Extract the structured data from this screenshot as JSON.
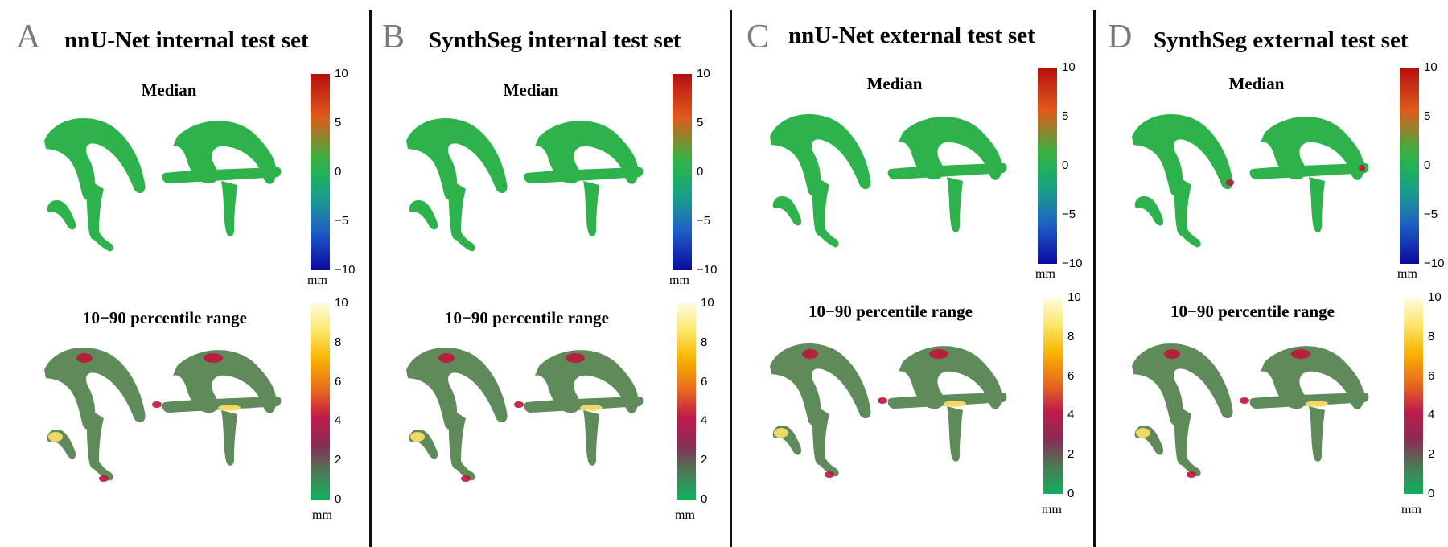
{
  "panels": [
    {
      "letter": "A",
      "title": "nnU-Net internal test set"
    },
    {
      "letter": "B",
      "title": "SynthSeg internal test set"
    },
    {
      "letter": "C",
      "title": "nnU-Net external test set"
    },
    {
      "letter": "D",
      "title": "SynthSeg external test set"
    }
  ],
  "labels": {
    "median": "Median",
    "range": "10−90 percentile range",
    "unit": "mm"
  },
  "median_ticks": [
    "10",
    "5",
    "0",
    "−5",
    "−10"
  ],
  "range_ticks": [
    "10",
    "8",
    "6",
    "4",
    "2",
    "0"
  ],
  "colors": {
    "divider": "#111111",
    "letter": "#7a7a7a",
    "base_green": "#2eb24c",
    "range_base": "#5f8a5a",
    "hot_red": "#c0143c",
    "hot_yellow": "#ffe066"
  }
}
